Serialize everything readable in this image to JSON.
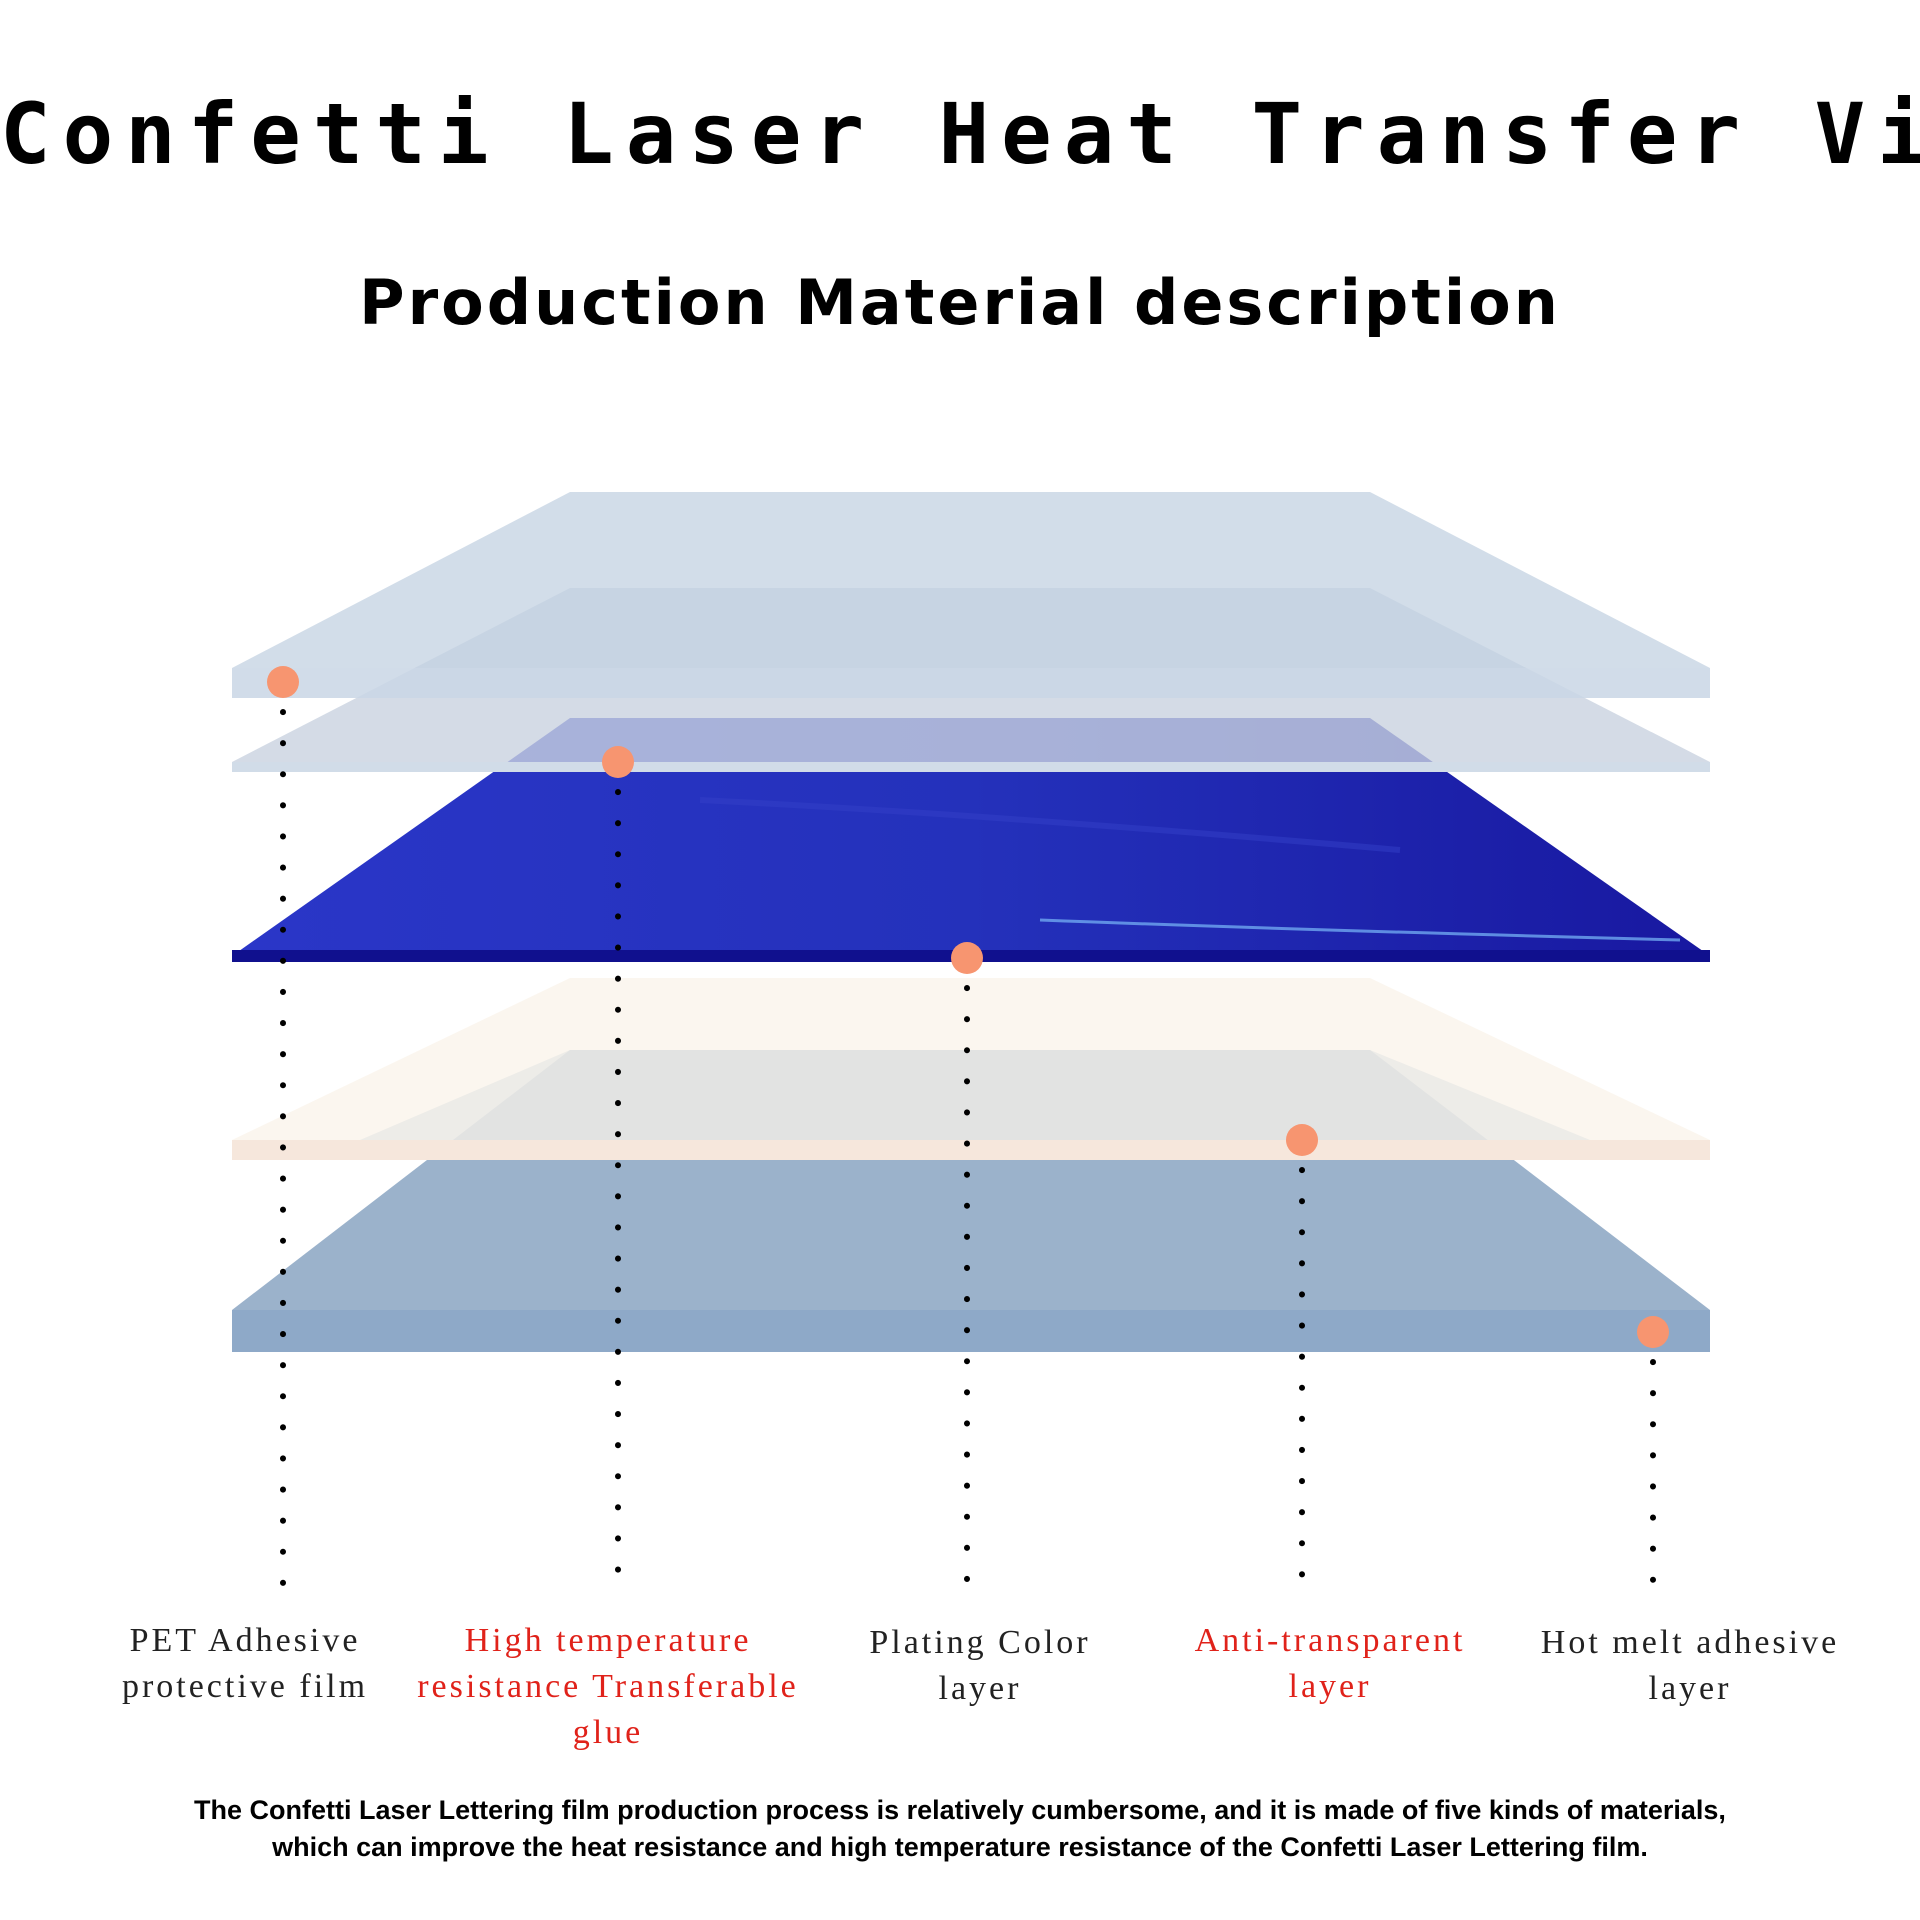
{
  "title": "Confetti Laser Heat Transfer Vinyl",
  "subtitle": "Production Material description",
  "colors": {
    "marker": "#F79570",
    "label_black": "#222222",
    "label_red": "#E0221A",
    "plating_blue": "#1A1AA8"
  },
  "layers": [
    {
      "label": "PET Adhesive\nprotective film",
      "color": "#222222"
    },
    {
      "label": "High temperature\nresistance Transferable\nglue",
      "color": "#E0221A"
    },
    {
      "label": "Plating Color\nlayer",
      "color": "#222222"
    },
    {
      "label": "Anti-transparent\nlayer",
      "color": "#E0221A"
    },
    {
      "label": "Hot melt adhesive\nlayer",
      "color": "#222222"
    }
  ],
  "footer": "The Confetti Laser Lettering film production process is relatively cumbersome, and it is made of five kinds of materials,\nwhich can improve the heat resistance and high temperature resistance of the  Confetti Laser  Lettering film."
}
